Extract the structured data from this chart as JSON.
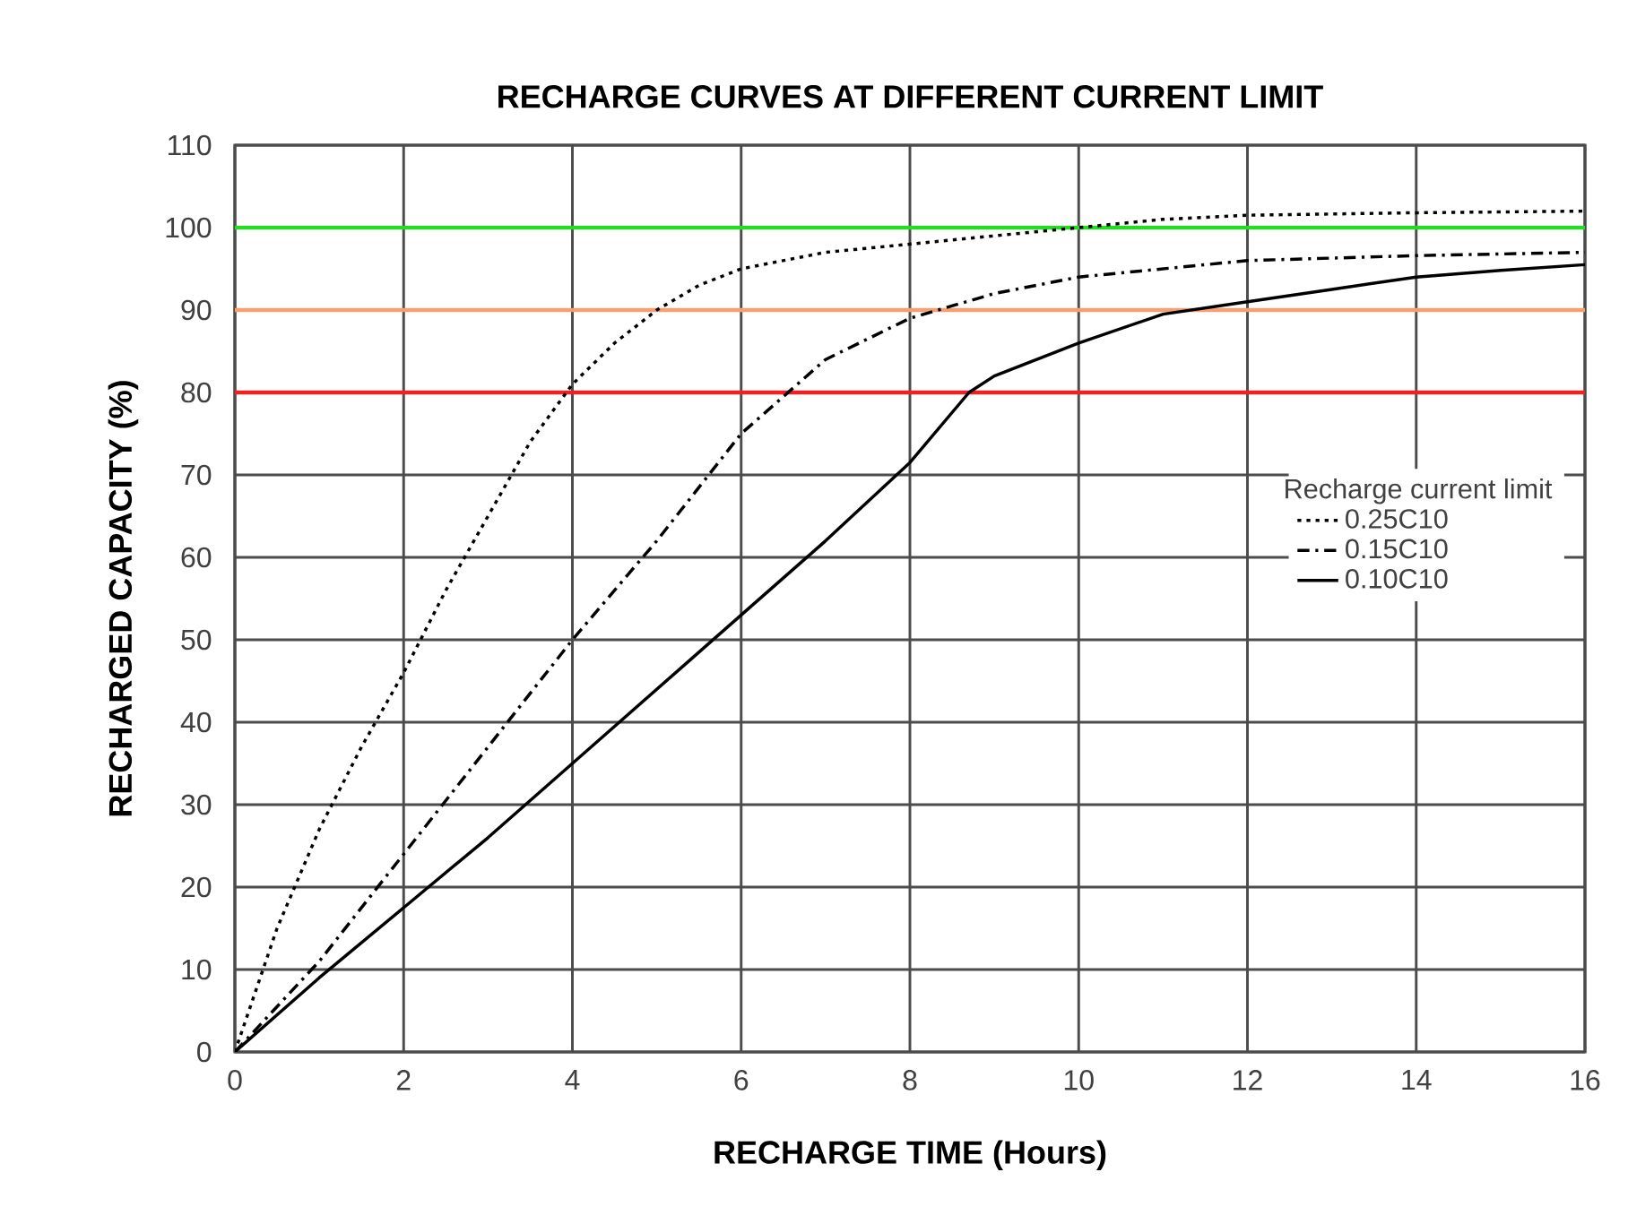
{
  "chart_data": {
    "type": "line",
    "title": "RECHARGE CURVES AT DIFFERENT CURRENT LIMIT",
    "xlabel": "RECHARGE TIME (Hours)",
    "ylabel": "RECHARGED CAPACITY (%)",
    "legend_title": "Recharge current limit",
    "xlim": [
      0,
      16
    ],
    "ylim": [
      0,
      110
    ],
    "xticks": [
      0,
      2,
      4,
      6,
      8,
      10,
      12,
      14,
      16
    ],
    "yticks": [
      0,
      10,
      20,
      30,
      40,
      50,
      60,
      70,
      80,
      90,
      100,
      110
    ],
    "grid": true,
    "legend": "center right",
    "marker": "none",
    "series": [
      {
        "name": "0.25C10",
        "color": "#000000",
        "line_style": "dotted",
        "x": [
          0,
          0.5,
          1,
          1.5,
          2,
          2.5,
          3,
          3.5,
          4,
          4.5,
          5,
          5.5,
          6,
          7,
          8,
          9,
          10,
          11,
          12,
          14,
          16
        ],
        "values": [
          0,
          15,
          27,
          37,
          46,
          56,
          65,
          74,
          81,
          86,
          90,
          93,
          95,
          97,
          98,
          99,
          100,
          101,
          101.5,
          101.8,
          102
        ]
      },
      {
        "name": "0.15C10",
        "color": "#000000",
        "line_style": "dashdot",
        "x": [
          0,
          1,
          2,
          3,
          4,
          5,
          6,
          7,
          8,
          9,
          10,
          11,
          12,
          13,
          14,
          16
        ],
        "values": [
          0,
          11,
          24,
          37,
          50,
          62,
          75,
          84,
          89,
          92,
          94,
          95,
          96,
          96.3,
          96.6,
          97
        ]
      },
      {
        "name": "0.10C10",
        "color": "#000000",
        "line_style": "solid",
        "x": [
          0,
          1,
          2,
          3,
          4,
          5,
          6,
          7,
          8,
          8.7,
          9,
          10,
          11,
          12,
          13,
          14,
          15,
          16
        ],
        "values": [
          0,
          9,
          17.5,
          26,
          35,
          44,
          53,
          62,
          71.5,
          80,
          82,
          86,
          89.5,
          91,
          92.5,
          94,
          94.8,
          95.5
        ]
      }
    ],
    "ref_lines": [
      {
        "axis": "y",
        "value": 100,
        "color": "#22dd22"
      },
      {
        "axis": "y",
        "value": 90,
        "color": "#f4a070"
      },
      {
        "axis": "y",
        "value": 80,
        "color": "#ee2222"
      }
    ]
  }
}
